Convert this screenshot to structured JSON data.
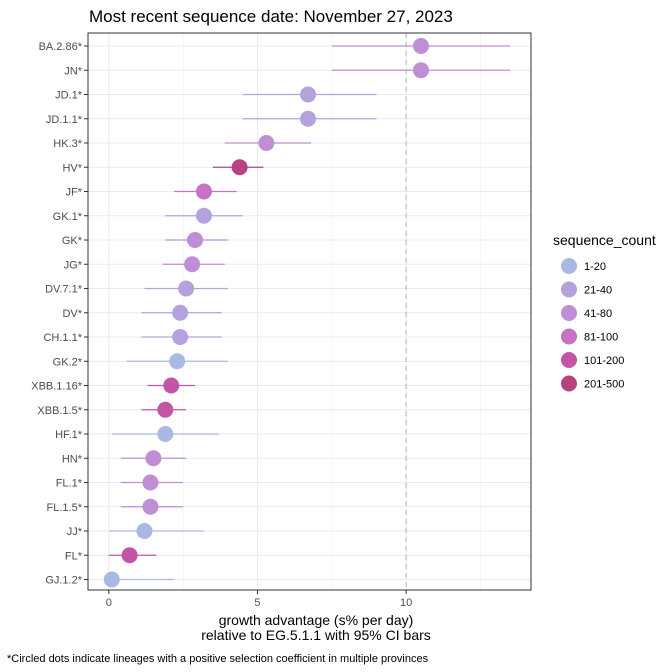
{
  "chart_data": {
    "type": "scatter",
    "title": "Most recent sequence date: November 27, 2023",
    "xlabel": "growth advantage (s% per day)",
    "xlabel2": "relative to  EG.5.1.1  with 95% CI bars",
    "ylabel": "",
    "xlim": [
      -0.7,
      14.2
    ],
    "xticks": [
      0,
      5,
      10
    ],
    "reference_line_x": 10,
    "grid": true,
    "legend": {
      "title": "sequence_count",
      "placement": "right",
      "items": [
        {
          "label": "1-20",
          "color": "#aab8e4"
        },
        {
          "label": "21-40",
          "color": "#b3a2dd"
        },
        {
          "label": "41-80",
          "color": "#bf8ed5"
        },
        {
          "label": "81-100",
          "color": "#c673c3"
        },
        {
          "label": "101-200",
          "color": "#c455a6"
        },
        {
          "label": "201-500",
          "color": "#b84280"
        }
      ]
    },
    "points": [
      {
        "lineage": "BA.2.86*",
        "value": 10.5,
        "low": 7.5,
        "high": 13.5,
        "color": "#bf8ed5"
      },
      {
        "lineage": "JN*",
        "value": 10.5,
        "low": 7.5,
        "high": 13.5,
        "color": "#bf8ed5"
      },
      {
        "lineage": "JD.1*",
        "value": 6.7,
        "low": 4.5,
        "high": 9.0,
        "color": "#b3a2dd"
      },
      {
        "lineage": "JD.1.1*",
        "value": 6.7,
        "low": 4.5,
        "high": 9.0,
        "color": "#b3a2dd"
      },
      {
        "lineage": "HK.3*",
        "value": 5.3,
        "low": 3.9,
        "high": 6.8,
        "color": "#bf8ed5"
      },
      {
        "lineage": "HV*",
        "value": 4.4,
        "low": 3.5,
        "high": 5.2,
        "color": "#b84280"
      },
      {
        "lineage": "JF*",
        "value": 3.2,
        "low": 2.2,
        "high": 4.3,
        "color": "#c673c3"
      },
      {
        "lineage": "GK.1*",
        "value": 3.2,
        "low": 1.9,
        "high": 4.5,
        "color": "#b3a2dd"
      },
      {
        "lineage": "GK*",
        "value": 2.9,
        "low": 1.9,
        "high": 4.0,
        "color": "#bf8ed5"
      },
      {
        "lineage": "JG*",
        "value": 2.8,
        "low": 1.8,
        "high": 3.9,
        "color": "#bf8ed5"
      },
      {
        "lineage": "DV.7.1*",
        "value": 2.6,
        "low": 1.2,
        "high": 4.0,
        "color": "#b3a2dd"
      },
      {
        "lineage": "DV*",
        "value": 2.4,
        "low": 1.1,
        "high": 3.8,
        "color": "#b3a2dd"
      },
      {
        "lineage": "CH.1.1*",
        "value": 2.4,
        "low": 1.1,
        "high": 3.8,
        "color": "#b3a2dd"
      },
      {
        "lineage": "GK.2*",
        "value": 2.3,
        "low": 0.6,
        "high": 4.0,
        "color": "#aab8e4"
      },
      {
        "lineage": "XBB.1.16*",
        "value": 2.1,
        "low": 1.3,
        "high": 2.9,
        "color": "#c455a6"
      },
      {
        "lineage": "XBB.1.5*",
        "value": 1.9,
        "low": 1.1,
        "high": 2.6,
        "color": "#c455a6"
      },
      {
        "lineage": "HF.1*",
        "value": 1.9,
        "low": 0.1,
        "high": 3.7,
        "color": "#aab8e4"
      },
      {
        "lineage": "HN*",
        "value": 1.5,
        "low": 0.4,
        "high": 2.6,
        "color": "#bf8ed5"
      },
      {
        "lineage": "FL.1*",
        "value": 1.4,
        "low": 0.4,
        "high": 2.5,
        "color": "#bf8ed5"
      },
      {
        "lineage": "FL.1.5*",
        "value": 1.4,
        "low": 0.4,
        "high": 2.5,
        "color": "#bf8ed5"
      },
      {
        "lineage": "JJ*",
        "value": 1.2,
        "low": 0.0,
        "high": 3.2,
        "color": "#aab8e4"
      },
      {
        "lineage": "FL*",
        "value": 0.7,
        "low": 0.0,
        "high": 1.6,
        "color": "#c455a6"
      },
      {
        "lineage": "GJ.1.2*",
        "value": 0.1,
        "low": -0.1,
        "high": 2.2,
        "color": "#aab8e4"
      }
    ]
  },
  "footnote": "*Circled dots indicate lineages with a positive selection coefficient in multiple provinces"
}
